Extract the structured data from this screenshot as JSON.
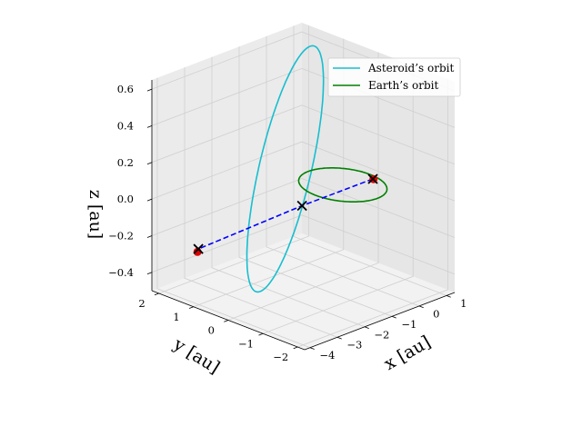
{
  "chart_data": {
    "type": "line3d",
    "title": "",
    "xlabel": "x [au]",
    "ylabel": "y [au]",
    "zlabel": "z [au]",
    "xlim": [
      -4.2,
      1.3
    ],
    "ylim": [
      -2.2,
      2.2
    ],
    "zlim": [
      -0.5,
      0.65
    ],
    "xticks": [
      -4,
      -3,
      -2,
      -1,
      0,
      1
    ],
    "yticks": [
      -2,
      -1,
      0,
      1,
      2
    ],
    "zticks": [
      -0.4,
      -0.2,
      0.0,
      0.2,
      0.4,
      0.6
    ],
    "xtick_labels": [
      "−4",
      "−3",
      "−2",
      "−1",
      "0",
      "1"
    ],
    "ytick_labels": [
      "−2",
      "−1",
      "0",
      "1",
      "2"
    ],
    "ztick_labels": [
      "−0.4",
      "−0.2",
      "0.0",
      "0.2",
      "0.4",
      "0.6"
    ],
    "grid": true,
    "legend_position": "upper-right",
    "legend": [
      {
        "label": "Asteroid’s orbit",
        "color": "#17becf"
      },
      {
        "label": "Earth’s orbit",
        "color": "#008000"
      }
    ],
    "series": [
      {
        "name": "Asteroid’s orbit",
        "kind": "orbit",
        "color": "#17becf",
        "center": [
          -1.35,
          0.6,
          0.12
        ],
        "u": [
          2.55,
          1.15,
          0.44
        ],
        "v": [
          0.15,
          -0.58,
          -0.025
        ]
      },
      {
        "name": "Earth’s orbit",
        "kind": "orbit",
        "color": "#008000",
        "center": [
          0.0,
          0.0,
          0.0
        ],
        "u": [
          1.0,
          0.0,
          0.0
        ],
        "v": [
          0.0,
          1.0,
          0.0
        ]
      }
    ],
    "trajectory": {
      "color": "#0000ff",
      "style": "dashed",
      "points": [
        [
          0.4,
          -0.55,
          0.05
        ],
        [
          -1.05,
          0.35,
          -0.08
        ],
        [
          -3.45,
          1.45,
          -0.26
        ]
      ]
    },
    "cross_markers": [
      [
        0.4,
        -0.55,
        0.05
      ],
      [
        -1.05,
        0.35,
        -0.08
      ],
      [
        -3.45,
        1.45,
        -0.26
      ]
    ],
    "dot_markers": [
      [
        0.36,
        -0.6,
        0.055
      ],
      [
        -3.52,
        1.42,
        -0.27
      ]
    ]
  }
}
